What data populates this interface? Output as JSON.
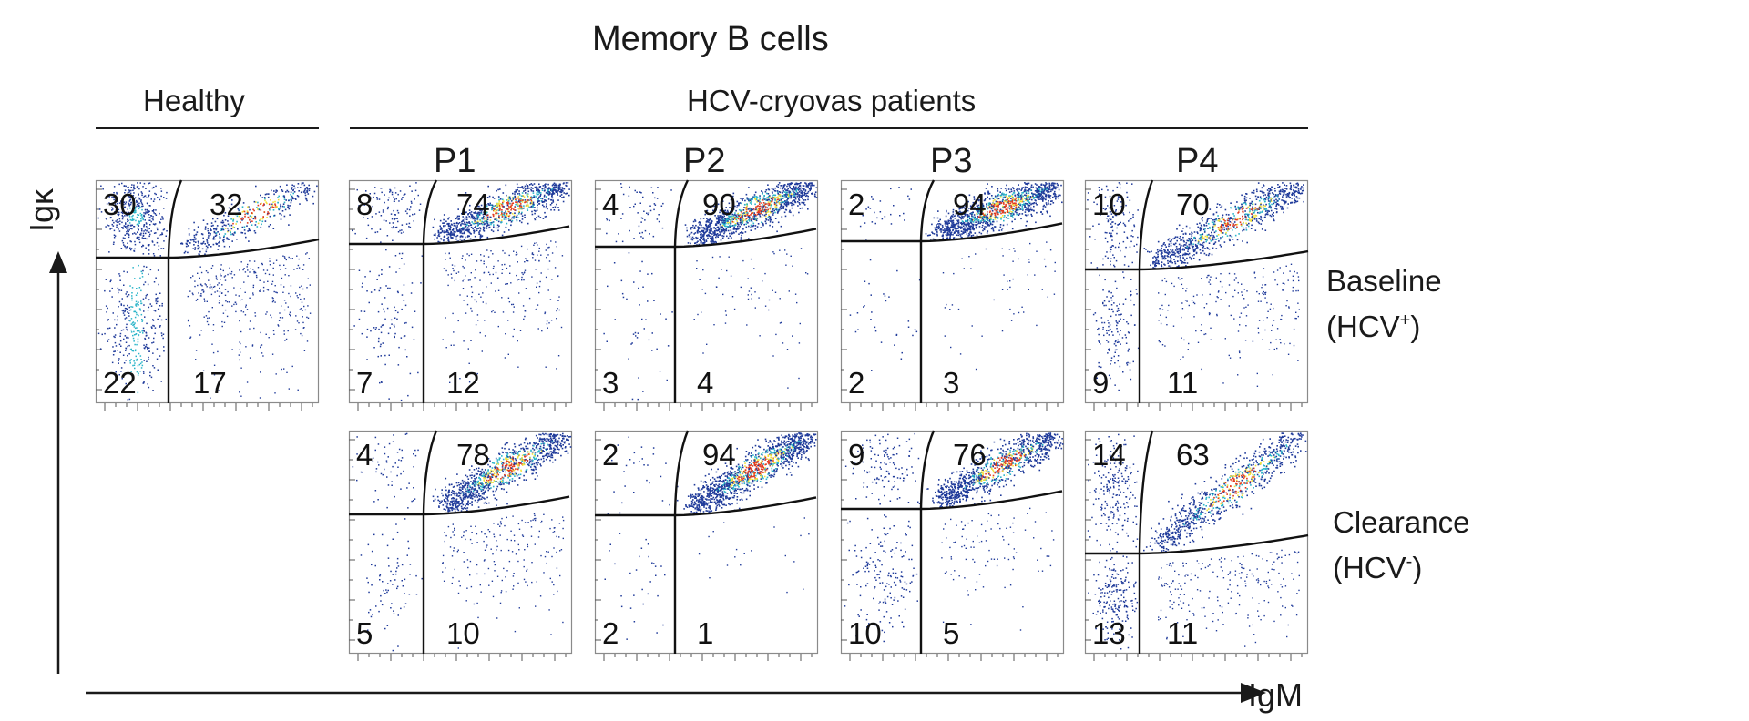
{
  "figure": {
    "title": "Memory B cells",
    "group_healthy": "Healthy",
    "group_patients": "HCV-cryovas patients",
    "y_axis_label": "Igκ",
    "x_axis_label": "IgM"
  },
  "rows": {
    "baseline": {
      "label": "Baseline",
      "sub_label": "(HCV",
      "sub_sup": "+",
      "sub_close": ")"
    },
    "clearance": {
      "label": "Clearance",
      "sub_label": "(HCV",
      "sub_sup": "-",
      "sub_close": ")"
    }
  },
  "colors": {
    "low": "#1f3a9a",
    "mid": "#2bb5c9",
    "high": "#f2e23a",
    "peak": "#e23b1f"
  },
  "chart_data": [
    {
      "type": "scatter",
      "id": "healthy",
      "title": "Healthy",
      "row": "baseline",
      "quadrants": {
        "top_left": "30",
        "top_right": "32",
        "bottom_left": "22",
        "bottom_right": "17"
      }
    },
    {
      "type": "scatter",
      "id": "p1-baseline",
      "title": "P1",
      "row": "baseline",
      "quadrants": {
        "top_left": "8",
        "top_right": "74",
        "bottom_left": "7",
        "bottom_right": "12"
      }
    },
    {
      "type": "scatter",
      "id": "p2-baseline",
      "title": "P2",
      "row": "baseline",
      "quadrants": {
        "top_left": "4",
        "top_right": "90",
        "bottom_left": "3",
        "bottom_right": "4"
      }
    },
    {
      "type": "scatter",
      "id": "p3-baseline",
      "title": "P3",
      "row": "baseline",
      "quadrants": {
        "top_left": "2",
        "top_right": "94",
        "bottom_left": "2",
        "bottom_right": "3"
      }
    },
    {
      "type": "scatter",
      "id": "p4-baseline",
      "title": "P4",
      "row": "baseline",
      "quadrants": {
        "top_left": "10",
        "top_right": "70",
        "bottom_left": "9",
        "bottom_right": "11"
      }
    },
    {
      "type": "scatter",
      "id": "p1-clearance",
      "title": "P1",
      "row": "clearance",
      "quadrants": {
        "top_left": "4",
        "top_right": "78",
        "bottom_left": "5",
        "bottom_right": "10"
      }
    },
    {
      "type": "scatter",
      "id": "p2-clearance",
      "title": "P2",
      "row": "clearance",
      "quadrants": {
        "top_left": "2",
        "top_right": "94",
        "bottom_left": "2",
        "bottom_right": "1"
      }
    },
    {
      "type": "scatter",
      "id": "p3-clearance",
      "title": "P3",
      "row": "clearance",
      "quadrants": {
        "top_left": "9",
        "top_right": "76",
        "bottom_left": "10",
        "bottom_right": "5"
      }
    },
    {
      "type": "scatter",
      "id": "p4-clearance",
      "title": "P4",
      "row": "clearance",
      "quadrants": {
        "top_left": "14",
        "top_right": "63",
        "bottom_left": "13",
        "bottom_right": "11"
      }
    }
  ]
}
